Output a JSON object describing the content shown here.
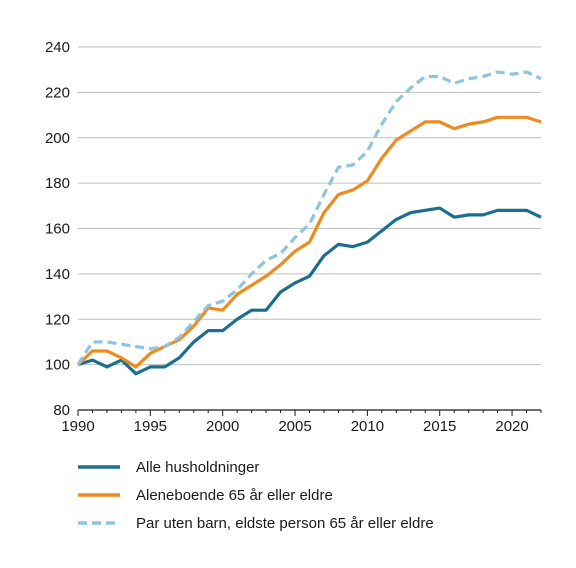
{
  "chart_data": {
    "type": "line",
    "title": "",
    "xlabel": "",
    "ylabel": "",
    "xlim": [
      1990,
      2022
    ],
    "ylim": [
      80,
      240
    ],
    "x_ticks": [
      1990,
      1995,
      2000,
      2005,
      2010,
      2015,
      2020
    ],
    "y_ticks": [
      80,
      100,
      120,
      140,
      160,
      180,
      200,
      220,
      240
    ],
    "grid": "horizontal",
    "legend_position": "bottom",
    "x": [
      1990,
      1991,
      1992,
      1993,
      1994,
      1995,
      1996,
      1997,
      1998,
      1999,
      2000,
      2001,
      2002,
      2003,
      2004,
      2005,
      2006,
      2007,
      2008,
      2009,
      2010,
      2011,
      2012,
      2013,
      2014,
      2015,
      2016,
      2017,
      2018,
      2019,
      2020,
      2021,
      2022
    ],
    "series": [
      {
        "name": "Alle husholdninger",
        "color": "#1a6f8e",
        "dash": "solid",
        "values": [
          100,
          102,
          99,
          102,
          96,
          99,
          99,
          103,
          110,
          115,
          115,
          120,
          124,
          124,
          132,
          136,
          139,
          148,
          153,
          152,
          154,
          159,
          164,
          167,
          168,
          169,
          165,
          166,
          166,
          168,
          168,
          168,
          165
        ]
      },
      {
        "name": "Aleneboende 65 år eller eldre",
        "color": "#ef8a1e",
        "dash": "solid",
        "values": [
          100,
          106,
          106,
          103,
          99,
          105,
          108,
          111,
          117,
          125,
          124,
          131,
          135,
          139,
          144,
          150,
          154,
          167,
          175,
          177,
          181,
          191,
          199,
          203,
          207,
          207,
          204,
          206,
          207,
          209,
          209,
          209,
          207
        ]
      },
      {
        "name": "Par uten barn, eldste person 65 år eller eldre",
        "color": "#8ec4df",
        "dash": "dashed",
        "values": [
          100,
          110,
          110,
          109,
          108,
          107,
          108,
          112,
          119,
          126,
          128,
          133,
          140,
          146,
          149,
          156,
          162,
          175,
          187,
          188,
          194,
          206,
          216,
          222,
          227,
          227,
          224,
          226,
          227,
          229,
          228,
          229,
          226
        ]
      }
    ]
  }
}
